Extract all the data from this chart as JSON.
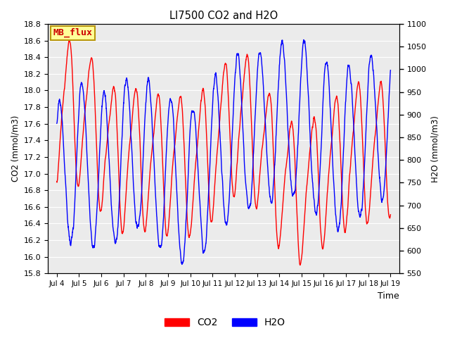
{
  "title": "LI7500 CO2 and H2O",
  "xlabel": "Time",
  "ylabel_left": "CO2 (mmol/m3)",
  "ylabel_right": "H2O (mmol/m3)",
  "ylim_left": [
    15.8,
    18.8
  ],
  "ylim_right": [
    550,
    1100
  ],
  "xtick_labels": [
    "Jul 4",
    "Jul 5",
    "Jul 6",
    "Jul 7",
    "Jul 8",
    "Jul 9",
    "Jul 10",
    "Jul 11",
    "Jul 12",
    "Jul 13",
    "Jul 14",
    "Jul 15",
    "Jul 16",
    "Jul 17",
    "Jul 18",
    "Jul 19"
  ],
  "color_co2": "#ff0000",
  "color_h2o": "#0000ff",
  "bg_color": "#ffffff",
  "plot_bg_color": "#ebebeb",
  "grid_color": "#ffffff",
  "annotation_text": "MB_flux",
  "annotation_bg": "#ffff99",
  "annotation_border": "#b8960c",
  "legend_co2": "CO2",
  "legend_h2o": "H2O",
  "linewidth": 1.0,
  "n_points": 2880,
  "seed": 7
}
